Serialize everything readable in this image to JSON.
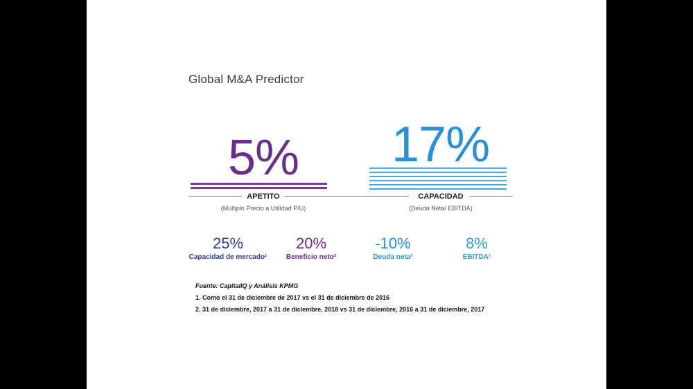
{
  "slide": {
    "title": "Global M&A Predictor"
  },
  "appetite": {
    "big_value": "5%",
    "label": "APETITO",
    "sub_label": "(Múltiplo Precio a Utilidad P/U)"
  },
  "capacity": {
    "big_value": "17%",
    "label": "CAPACIDAD",
    "sub_label": "(Deuda Neta/ EBITDA)"
  },
  "metrics": [
    {
      "value": "25%",
      "label": "Capacidad de mercado¹",
      "color": "#2c3f8f"
    },
    {
      "value": "20%",
      "label": "Beneficio neto²",
      "color": "#6a2e8a"
    },
    {
      "value": "-10%",
      "label": "Deuda neta²",
      "color": "#2b8fd6"
    },
    {
      "value": "8%",
      "label": "EBITDA¹",
      "color": "#3a9ad9"
    }
  ],
  "notes": {
    "source": "Fuente: CapitalIQ y Análisis KPMG",
    "note1": "1. Como el 31 de diciembre de 2017 vs el 31 de diciembre de 2016",
    "note2": "2. 31 de diciembre, 2017 a 31 de diciembre, 2018 vs 31 de diciembre, 2016 a 31 de diciembre, 2017"
  },
  "colors": {
    "appetite_purple": "#6a2e8a",
    "capacity_blue": "#2b8fd6",
    "background": "#ffffff",
    "letterbox": "#000000"
  }
}
